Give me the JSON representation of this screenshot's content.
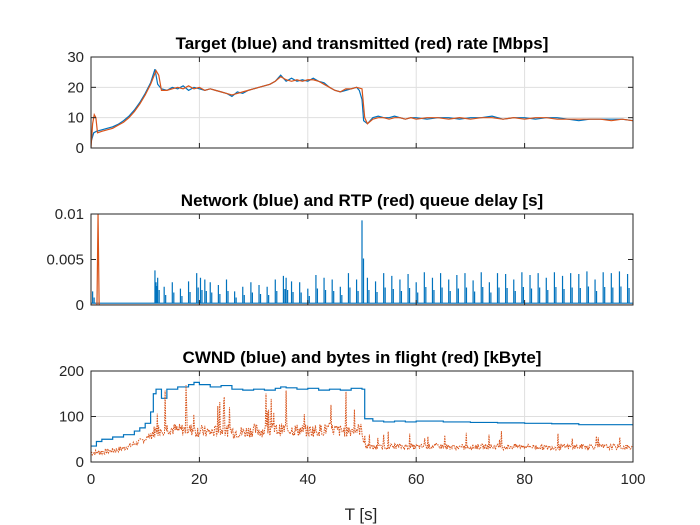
{
  "colors": {
    "blue": "#0072BD",
    "red": "#D95319",
    "axis": "#262626",
    "grid": "#dfdfdf"
  },
  "figure": {
    "xlabel": "T [s]"
  },
  "chart_data": [
    {
      "type": "line",
      "title": "Target (blue) and transmitted (red) rate [Mbps]",
      "xlim": [
        0,
        100
      ],
      "ylim": [
        0,
        30
      ],
      "grid": true,
      "yticks": [
        0,
        10,
        20,
        30
      ],
      "ytick_labels": [
        "0",
        "10",
        "20",
        "30"
      ],
      "xticks": [
        0,
        20,
        40,
        60,
        80,
        100
      ],
      "show_xtick_labels": false,
      "series": [
        {
          "color": "blue",
          "style": "solid",
          "x": [
            0,
            0.5,
            1,
            2,
            3,
            4,
            5,
            6,
            7,
            8,
            9,
            10,
            11,
            11.8,
            12.3,
            13,
            14,
            15,
            16,
            17,
            18,
            19,
            20,
            21,
            22,
            23,
            24,
            25,
            26,
            27,
            28,
            29,
            30,
            31,
            32,
            33,
            34,
            35,
            35.5,
            36,
            37,
            38,
            39,
            40,
            41,
            42,
            43,
            44,
            45,
            46,
            47,
            48,
            49,
            49.5,
            50,
            50.3,
            51,
            52,
            53,
            54,
            55,
            56,
            57,
            58,
            59,
            60,
            62,
            64,
            66,
            68,
            70,
            72,
            74,
            76,
            78,
            80,
            82,
            84,
            86,
            88,
            90,
            92,
            94,
            96,
            98,
            100
          ],
          "y": [
            2,
            5,
            5.5,
            6,
            6.5,
            7,
            7.8,
            9,
            10.5,
            12.5,
            15,
            18,
            21.5,
            26,
            21,
            19.5,
            19,
            20,
            19.5,
            20.5,
            19,
            20,
            19.5,
            19,
            19.5,
            19,
            18.5,
            18,
            17,
            18.5,
            18,
            19,
            19.5,
            20,
            20.5,
            21,
            22,
            24,
            23,
            22,
            23,
            22,
            22.5,
            22,
            23,
            22,
            21.5,
            20,
            19,
            18.5,
            19,
            19.5,
            20,
            19,
            16,
            9,
            8,
            10,
            10.5,
            10,
            10,
            10.5,
            10,
            9.5,
            10,
            10,
            9.5,
            10,
            10,
            9.5,
            10,
            10,
            10.5,
            9.5,
            10,
            10,
            9.5,
            10,
            10,
            9.5,
            9,
            9.5,
            9.5,
            9.5,
            9.5,
            9
          ]
        },
        {
          "color": "red",
          "style": "solid",
          "x": [
            0,
            0.3,
            0.6,
            0.9,
            1.2,
            2,
            3,
            4,
            5,
            6,
            7,
            8,
            9,
            10,
            11,
            12,
            12.5,
            13,
            14,
            15,
            16,
            17,
            18,
            19,
            20,
            21,
            22,
            23,
            24,
            25,
            26,
            27,
            28,
            29,
            30,
            31,
            32,
            33,
            34,
            35,
            36,
            37,
            38,
            39,
            40,
            41,
            42,
            43,
            44,
            45,
            46,
            47,
            48,
            49,
            50,
            50.5,
            51,
            52,
            53,
            54,
            55,
            56,
            57,
            58,
            59,
            60,
            62,
            64,
            66,
            68,
            70,
            72,
            74,
            76,
            78,
            80,
            82,
            84,
            86,
            88,
            90,
            92,
            94,
            96,
            98,
            100
          ],
          "y": [
            0,
            8,
            11,
            10,
            5,
            5.5,
            6,
            6.5,
            7.5,
            8.5,
            10,
            12,
            14.5,
            17.5,
            21,
            25.5,
            24,
            19,
            19,
            19.5,
            20,
            19.5,
            20.5,
            19.5,
            20,
            19,
            19.5,
            19,
            18.5,
            18,
            17.5,
            18,
            18.5,
            19,
            19.5,
            20,
            20.5,
            21,
            22,
            23.5,
            22.5,
            22,
            22.5,
            22,
            22.5,
            22.5,
            22,
            21,
            20,
            19,
            18.5,
            19.5,
            19.5,
            20,
            19.5,
            10,
            8,
            9.5,
            10,
            10,
            9.5,
            10,
            10,
            9.5,
            10,
            9.5,
            10,
            10,
            9.5,
            10,
            9.5,
            10,
            10,
            9.5,
            10,
            9.5,
            10,
            10,
            9.5,
            9.5,
            9.5,
            9.5,
            9.5,
            9,
            9.5,
            9
          ]
        }
      ]
    },
    {
      "type": "line",
      "title": "Network (blue) and RTP (red) queue delay [s]",
      "xlim": [
        0,
        100
      ],
      "ylim": [
        0,
        0.01
      ],
      "grid": false,
      "yticks": [
        0,
        0.005,
        0.01
      ],
      "ytick_labels": [
        "0",
        "0.005",
        "0.01"
      ],
      "xticks": [
        0,
        20,
        40,
        60,
        80,
        100
      ],
      "show_xtick_labels": false,
      "series": [
        {
          "color": "blue",
          "style": "spikes",
          "baseline": 0.0002,
          "x": [
            0.3,
            11.8,
            12,
            12.3,
            13.5,
            15,
            16.5,
            18,
            19.5,
            20.2,
            21,
            22,
            23.5,
            25,
            26.5,
            28,
            29.5,
            31,
            32.5,
            34,
            35.5,
            36,
            37,
            38.5,
            40,
            41.5,
            43,
            44.5,
            46,
            47.5,
            49,
            50,
            51,
            52.5,
            54,
            55.5,
            57,
            58.5,
            60,
            61.5,
            63,
            64.5,
            66,
            67.5,
            69,
            70.5,
            72,
            73.5,
            75,
            76.5,
            78,
            79.5,
            81,
            82.5,
            84,
            85.5,
            87,
            88.5,
            90,
            91.5,
            93,
            94.5,
            96,
            97.5,
            99
          ],
          "y": [
            0.0015,
            0.0038,
            0.0025,
            0.003,
            0.002,
            0.0025,
            0.0018,
            0.0026,
            0.0035,
            0.003,
            0.0028,
            0.0025,
            0.0022,
            0.0028,
            0.0015,
            0.002,
            0.0025,
            0.0022,
            0.002,
            0.0028,
            0.0032,
            0.003,
            0.0026,
            0.0025,
            0.0018,
            0.0033,
            0.003,
            0.0028,
            0.002,
            0.0035,
            0.0028,
            0.0093,
            0.003,
            0.0026,
            0.0035,
            0.0032,
            0.0028,
            0.0034,
            0.0025,
            0.0036,
            0.003,
            0.0035,
            0.0028,
            0.0033,
            0.0035,
            0.0027,
            0.0036,
            0.0025,
            0.0035,
            0.0034,
            0.0028,
            0.0036,
            0.0033,
            0.0035,
            0.003,
            0.0036,
            0.0032,
            0.0035,
            0.0034,
            0.0037,
            0.0028,
            0.0036,
            0.0035,
            0.0037,
            0.0034
          ]
        },
        {
          "color": "red",
          "style": "solid",
          "x": [
            0,
            1.1,
            1.3,
            1.5,
            100
          ],
          "y": [
            0,
            0,
            0.01,
            0,
            0
          ]
        }
      ]
    },
    {
      "type": "line",
      "title": "CWND (blue) and bytes in flight (red) [kByte]",
      "xlim": [
        0,
        100
      ],
      "ylim": [
        0,
        200
      ],
      "grid": true,
      "yticks": [
        0,
        100,
        200
      ],
      "ytick_labels": [
        "0",
        "100",
        "200"
      ],
      "xticks": [
        0,
        20,
        40,
        60,
        80,
        100
      ],
      "xtick_labels": [
        "0",
        "20",
        "40",
        "60",
        "80",
        "100"
      ],
      "show_xtick_labels": true,
      "series": [
        {
          "color": "blue",
          "style": "step",
          "x": [
            0,
            1,
            2,
            4,
            6,
            8,
            9,
            10,
            11,
            11.5,
            12,
            13,
            14,
            16,
            18,
            19,
            20,
            22,
            24,
            26,
            28,
            30,
            32,
            34,
            35,
            36,
            38,
            40,
            42,
            44,
            46,
            48,
            50,
            50.5,
            52,
            54,
            56,
            58,
            60,
            65,
            70,
            75,
            80,
            85,
            90,
            95,
            100
          ],
          "y": [
            35,
            45,
            50,
            55,
            60,
            68,
            75,
            85,
            110,
            150,
            160,
            140,
            160,
            165,
            170,
            175,
            170,
            165,
            168,
            160,
            158,
            160,
            158,
            162,
            165,
            163,
            160,
            162,
            158,
            160,
            158,
            162,
            160,
            95,
            90,
            88,
            90,
            88,
            90,
            88,
            87,
            86,
            85,
            84,
            82,
            82,
            80
          ]
        },
        {
          "color": "red",
          "style": "noisy",
          "x": [
            0,
            2,
            4,
            6,
            8,
            10,
            11,
            12,
            14,
            16,
            18,
            20,
            22,
            24,
            26,
            28,
            30,
            32,
            34,
            36,
            38,
            40,
            42,
            44,
            46,
            48,
            50,
            50.5,
            52,
            56,
            60,
            64,
            68,
            72,
            76,
            80,
            84,
            88,
            92,
            96,
            100
          ],
          "y": [
            20,
            22,
            25,
            30,
            40,
            50,
            60,
            70,
            75,
            70,
            72,
            68,
            65,
            70,
            68,
            65,
            70,
            68,
            70,
            72,
            70,
            68,
            70,
            72,
            68,
            70,
            72,
            35,
            32,
            35,
            33,
            35,
            32,
            34,
            33,
            35,
            32,
            33,
            34,
            33,
            32
          ]
        }
      ]
    }
  ]
}
